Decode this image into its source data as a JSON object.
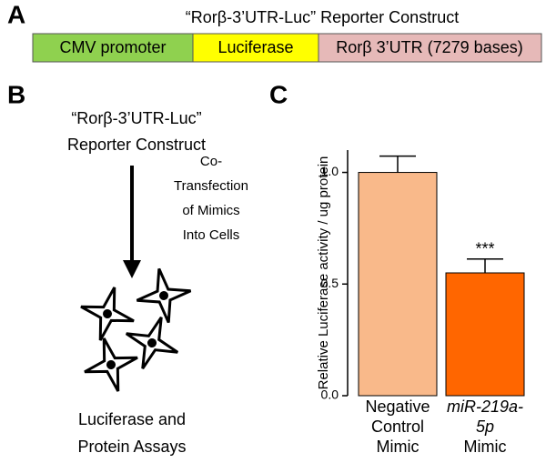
{
  "panel_labels": [
    "A",
    "B",
    "C"
  ],
  "construct": {
    "title": "“Rorβ-3’UTR-Luc” Reporter Construct",
    "segments": [
      "CMV promoter",
      "Luciferase",
      "Rorβ 3’UTR (7279 bases)"
    ]
  },
  "workflow": {
    "start": [
      "“Rorβ-3’UTR-Luc”",
      "Reporter Construct"
    ],
    "step": [
      "Co-",
      "Transfection",
      "of Mimics",
      "Into Cells"
    ],
    "end": [
      "Luciferase and",
      "Protein Assays"
    ]
  },
  "chart_data": {
    "type": "bar",
    "ylabel": "Relative Luciferase activity / ug protein",
    "categories": [
      [
        "Negative",
        "Control",
        "Mimic"
      ],
      [
        "miR-219a-",
        "5p",
        "Mimic"
      ]
    ],
    "values": [
      1.0,
      0.55
    ],
    "errors": [
      0.073,
      0.062
    ],
    "colors": [
      "#f9b98a",
      "#ff6600"
    ],
    "annotation": "***",
    "ylim": [
      0,
      1.1
    ],
    "yticks": [
      {
        "value": 0,
        "label": "0.0"
      },
      {
        "value": 0.5,
        "label": "0.5"
      },
      {
        "value": 1,
        "label": "1.0"
      }
    ]
  }
}
